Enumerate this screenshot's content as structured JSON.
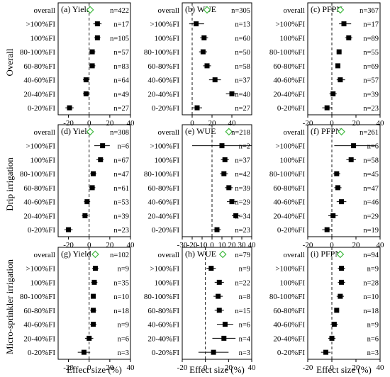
{
  "categories": [
    ">100%FI",
    "100%FI",
    "80-100%FI",
    "60-80%FI",
    "40-60%FI",
    "20-40%FI",
    "0-20%FI"
  ],
  "overall_label": "overall",
  "rows": [
    "Overall",
    "Drip irrigation",
    "Micro-sprinkler irrigation"
  ],
  "xlabel": "Effect size (%)",
  "colors": {
    "overall_marker": "#3cb83c",
    "marker": "#000000"
  },
  "chart_data": [
    {
      "type": "forest",
      "id": "a",
      "title": "(a) Yield",
      "row": "Overall",
      "xlim": [
        -30,
        40
      ],
      "xticks": [
        -20,
        0,
        20,
        40
      ],
      "zero_line": 0,
      "overall": {
        "mean": 1,
        "lo": -1,
        "hi": 3,
        "n": "n=422"
      },
      "points": [
        {
          "category": ">100%FI",
          "mean": 8,
          "lo": 4,
          "hi": 12,
          "n": "n=17"
        },
        {
          "category": "100%FI",
          "mean": 8,
          "lo": 5,
          "hi": 11,
          "n": "n=105"
        },
        {
          "category": "80-100%FI",
          "mean": 3,
          "lo": 0,
          "hi": 6,
          "n": "n=57"
        },
        {
          "category": "60-80%FI",
          "mean": 3,
          "lo": 0,
          "hi": 6,
          "n": "n=83"
        },
        {
          "category": "40-60%FI",
          "mean": -3,
          "lo": -6,
          "hi": 0,
          "n": "n=64"
        },
        {
          "category": "20-40%FI",
          "mean": -3,
          "lo": -6,
          "hi": 0,
          "n": "n=49"
        },
        {
          "category": "0-20%FI",
          "mean": -19,
          "lo": -23,
          "hi": -15,
          "n": "n=27"
        }
      ]
    },
    {
      "type": "forest",
      "id": "b",
      "title": "(b) WUE",
      "row": "Overall",
      "xlim": [
        -10,
        60
      ],
      "xticks": [
        0,
        20,
        40
      ],
      "zero_line": 0,
      "overall": {
        "mean": 15,
        "lo": 13,
        "hi": 17,
        "n": "n=305"
      },
      "points": [
        {
          "category": ">100%FI",
          "mean": 4,
          "lo": -3,
          "hi": 12,
          "n": "n=13"
        },
        {
          "category": "100%FI",
          "mean": 12,
          "lo": 8,
          "hi": 16,
          "n": "n=60"
        },
        {
          "category": "80-100%FI",
          "mean": 11,
          "lo": 7,
          "hi": 15,
          "n": "n=50"
        },
        {
          "category": "60-80%FI",
          "mean": 15,
          "lo": 11,
          "hi": 19,
          "n": "n=58"
        },
        {
          "category": "40-60%FI",
          "mean": 23,
          "lo": 17,
          "hi": 29,
          "n": "n=37"
        },
        {
          "category": "20-40%FI",
          "mean": 40,
          "lo": 34,
          "hi": 46,
          "n": "n=40"
        },
        {
          "category": "0-20%FI",
          "mean": 5,
          "lo": 0,
          "hi": 10,
          "n": "n=27"
        }
      ]
    },
    {
      "type": "forest",
      "id": "c",
      "title": "(c) PFPN",
      "row": "Overall",
      "xlim": [
        -20,
        40
      ],
      "xticks": [
        -20,
        0,
        20,
        40
      ],
      "zero_line": 0,
      "overall": {
        "mean": 7,
        "lo": 5,
        "hi": 9,
        "n": "n=367"
      },
      "points": [
        {
          "category": ">100%FI",
          "mean": 10,
          "lo": 6,
          "hi": 16,
          "n": "n=17"
        },
        {
          "category": "100%FI",
          "mean": 14,
          "lo": 11,
          "hi": 17,
          "n": "n=89"
        },
        {
          "category": "80-100%FI",
          "mean": 6,
          "lo": 4,
          "hi": 8,
          "n": "n=55"
        },
        {
          "category": "60-80%FI",
          "mean": 5,
          "lo": 3,
          "hi": 7,
          "n": "n=69"
        },
        {
          "category": "40-60%FI",
          "mean": 7,
          "lo": 4,
          "hi": 11,
          "n": "n=57"
        },
        {
          "category": "20-40%FI",
          "mean": 1,
          "lo": -2,
          "hi": 4,
          "n": "n=39"
        },
        {
          "category": "0-20%FI",
          "mean": -4,
          "lo": -8,
          "hi": 0,
          "n": "n=23"
        }
      ]
    },
    {
      "type": "forest",
      "id": "d",
      "title": "(d) Yield",
      "row": "Drip irrigation",
      "xlim": [
        -30,
        40
      ],
      "xticks": [
        -20,
        0,
        20,
        40
      ],
      "zero_line": 0,
      "overall": {
        "mean": 1,
        "lo": -1,
        "hi": 3,
        "n": "n=308"
      },
      "points": [
        {
          "category": ">100%FI",
          "mean": 13,
          "lo": 5,
          "hi": 20,
          "n": "n=6"
        },
        {
          "category": "100%FI",
          "mean": 11,
          "lo": 7,
          "hi": 14,
          "n": "n=67"
        },
        {
          "category": "80-100%FI",
          "mean": 4,
          "lo": 1,
          "hi": 7,
          "n": "n=47"
        },
        {
          "category": "60-80%FI",
          "mean": 3,
          "lo": 0,
          "hi": 6,
          "n": "n=61"
        },
        {
          "category": "40-60%FI",
          "mean": -2,
          "lo": -5,
          "hi": 1,
          "n": "n=53"
        },
        {
          "category": "20-40%FI",
          "mean": -4,
          "lo": -7,
          "hi": -1,
          "n": "n=39"
        },
        {
          "category": "0-20%FI",
          "mean": -20,
          "lo": -24,
          "hi": -16,
          "n": "n=23"
        }
      ]
    },
    {
      "type": "forest",
      "id": "e",
      "title": "(e) WUE",
      "row": "Drip irrigation",
      "xlim": [
        -30,
        40
      ],
      "xticks": [
        -30,
        -20,
        -10,
        0,
        10,
        20,
        30,
        40
      ],
      "zero_line": 0,
      "overall": {
        "mean": 17,
        "lo": 15,
        "hi": 19,
        "n": "n=218"
      },
      "points": [
        {
          "category": ">100%FI",
          "mean": 10,
          "lo": -20,
          "hi": 40,
          "n": "n=2"
        },
        {
          "category": "100%FI",
          "mean": 13,
          "lo": 9,
          "hi": 17,
          "n": "n=37"
        },
        {
          "category": "80-100%FI",
          "mean": 12,
          "lo": 8,
          "hi": 16,
          "n": "n=42"
        },
        {
          "category": "60-80%FI",
          "mean": 17,
          "lo": 13,
          "hi": 21,
          "n": "n=39"
        },
        {
          "category": "40-60%FI",
          "mean": 20,
          "lo": 15,
          "hi": 25,
          "n": "n=29"
        },
        {
          "category": "20-40%FI",
          "mean": 24,
          "lo": 20,
          "hi": 28,
          "n": "n=34"
        },
        {
          "category": "0-20%FI",
          "mean": 5,
          "lo": 1,
          "hi": 9,
          "n": "n=23"
        }
      ]
    },
    {
      "type": "forest",
      "id": "f",
      "title": "(f) PFPN",
      "row": "Drip irrigation",
      "xlim": [
        -20,
        40
      ],
      "xticks": [
        -20,
        0,
        20,
        40
      ],
      "zero_line": 0,
      "overall": {
        "mean": 8,
        "lo": 6,
        "hi": 10,
        "n": "n=261"
      },
      "points": [
        {
          "category": ">100%FI",
          "mean": 18,
          "lo": 2,
          "hi": 36,
          "n": "n=6"
        },
        {
          "category": "100%FI",
          "mean": 16,
          "lo": 12,
          "hi": 20,
          "n": "n=58"
        },
        {
          "category": "80-100%FI",
          "mean": 4,
          "lo": 1,
          "hi": 7,
          "n": "n=45"
        },
        {
          "category": "60-80%FI",
          "mean": 5,
          "lo": 2,
          "hi": 8,
          "n": "n=47"
        },
        {
          "category": "40-60%FI",
          "mean": 8,
          "lo": 4,
          "hi": 12,
          "n": "n=46"
        },
        {
          "category": "20-40%FI",
          "mean": 1,
          "lo": -3,
          "hi": 5,
          "n": "n=29"
        },
        {
          "category": "0-20%FI",
          "mean": -4,
          "lo": -8,
          "hi": 0,
          "n": "n=19"
        }
      ]
    },
    {
      "type": "forest",
      "id": "g",
      "title": "(g) Yield",
      "row": "Micro-sprinkler irrigation",
      "xlim": [
        -30,
        40
      ],
      "xticks": [
        -20,
        0,
        20,
        40
      ],
      "zero_line": 0,
      "overall": {
        "mean": 6,
        "lo": 4,
        "hi": 8,
        "n": "n=102"
      },
      "points": [
        {
          "category": ">100%FI",
          "mean": 6,
          "lo": 3,
          "hi": 9,
          "n": "n=9"
        },
        {
          "category": "100%FI",
          "mean": 5,
          "lo": 2,
          "hi": 8,
          "n": "n=35"
        },
        {
          "category": "80-100%FI",
          "mean": 4,
          "lo": 2,
          "hi": 6,
          "n": "n=10"
        },
        {
          "category": "60-80%FI",
          "mean": 4,
          "lo": 1,
          "hi": 7,
          "n": "n=18"
        },
        {
          "category": "40-60%FI",
          "mean": 4,
          "lo": 1,
          "hi": 7,
          "n": "n=9"
        },
        {
          "category": "20-40%FI",
          "mean": 0,
          "lo": -4,
          "hi": 4,
          "n": "n=6"
        },
        {
          "category": "0-20%FI",
          "mean": -5,
          "lo": -11,
          "hi": 1,
          "n": "n=3"
        }
      ]
    },
    {
      "type": "forest",
      "id": "h",
      "title": "(h) WUE",
      "row": "Micro-sprinkler irrigation",
      "xlim": [
        -20,
        40
      ],
      "xticks": [
        -20,
        0,
        20,
        40
      ],
      "zero_line": 0,
      "overall": {
        "mean": 15,
        "lo": 13,
        "hi": 17,
        "n": "n=79"
      },
      "points": [
        {
          "category": ">100%FI",
          "mean": 5,
          "lo": 1,
          "hi": 9,
          "n": "n=9"
        },
        {
          "category": "100%FI",
          "mean": 12,
          "lo": 8,
          "hi": 16,
          "n": "n=22"
        },
        {
          "category": "80-100%FI",
          "mean": 11,
          "lo": 7,
          "hi": 15,
          "n": "n=8"
        },
        {
          "category": "60-80%FI",
          "mean": 12,
          "lo": 8,
          "hi": 16,
          "n": "n=15"
        },
        {
          "category": "40-60%FI",
          "mean": 17,
          "lo": 10,
          "hi": 24,
          "n": "n=6"
        },
        {
          "category": "20-40%FI",
          "mean": 16,
          "lo": 6,
          "hi": 26,
          "n": "n=4"
        },
        {
          "category": "0-20%FI",
          "mean": 7,
          "lo": -6,
          "hi": 20,
          "n": "n=3"
        }
      ]
    },
    {
      "type": "forest",
      "id": "i",
      "title": "(i) PFPN",
      "row": "Micro-sprinkler irrigation",
      "xlim": [
        -20,
        40
      ],
      "xticks": [
        -20,
        0,
        20,
        40
      ],
      "zero_line": 0,
      "overall": {
        "mean": 7,
        "lo": 5,
        "hi": 9,
        "n": "n=94"
      },
      "points": [
        {
          "category": ">100%FI",
          "mean": 8,
          "lo": 5,
          "hi": 11,
          "n": "n=9"
        },
        {
          "category": "100%FI",
          "mean": 8,
          "lo": 5,
          "hi": 11,
          "n": "n=28"
        },
        {
          "category": "80-100%FI",
          "mean": 7,
          "lo": 4,
          "hi": 10,
          "n": "n=10"
        },
        {
          "category": "60-80%FI",
          "mean": 4,
          "lo": 2,
          "hi": 6,
          "n": "n=18"
        },
        {
          "category": "40-60%FI",
          "mean": 2,
          "lo": -1,
          "hi": 5,
          "n": "n=9"
        },
        {
          "category": "20-40%FI",
          "mean": 0,
          "lo": -3,
          "hi": 3,
          "n": "n=6"
        },
        {
          "category": "0-20%FI",
          "mean": -5,
          "lo": -9,
          "hi": -1,
          "n": "n=3"
        }
      ]
    }
  ]
}
